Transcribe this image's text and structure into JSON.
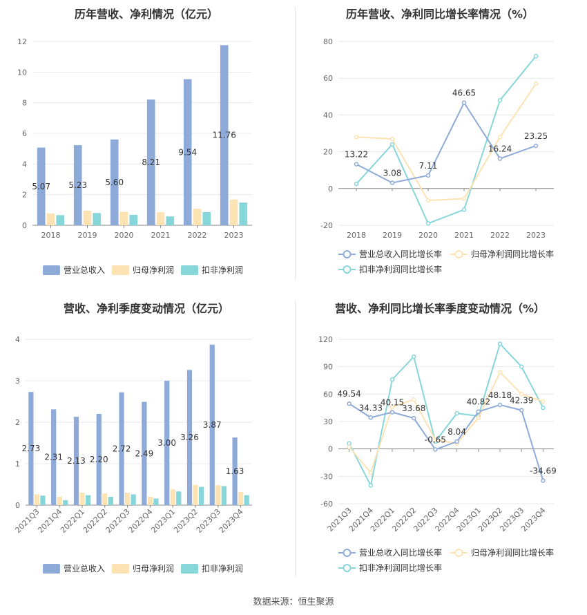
{
  "source_label": "数据来源：恒生聚源",
  "colors": {
    "revenue": "#8eaad9",
    "parent": "#fde3b4",
    "deducted": "#86d6da",
    "revenue_line": "#8eaad9",
    "parent_line": "#fde3b4",
    "deducted_line": "#86d6da",
    "grid": "#e8e8e8",
    "axis": "#666666"
  },
  "chart_data": [
    {
      "id": "annual-amount",
      "type": "bar",
      "title": "历年营收、净利情况（亿元）",
      "categories": [
        "2018",
        "2019",
        "2020",
        "2021",
        "2022",
        "2023"
      ],
      "ylim": [
        0,
        12
      ],
      "yticks": [
        0,
        2,
        4,
        6,
        8,
        10,
        12
      ],
      "series": [
        {
          "name": "营业总收入",
          "color_key": "revenue",
          "values": [
            5.07,
            5.23,
            5.6,
            8.21,
            9.54,
            11.76
          ],
          "labels": [
            "5.07",
            "5.23",
            "5.60",
            "8.21",
            "9.54",
            "11.76"
          ]
        },
        {
          "name": "归母净利润",
          "color_key": "parent",
          "values": [
            0.78,
            0.95,
            0.88,
            0.85,
            1.08,
            1.68
          ]
        },
        {
          "name": "扣非净利润",
          "color_key": "deducted",
          "values": [
            0.66,
            0.8,
            0.68,
            0.58,
            0.86,
            1.48
          ]
        }
      ],
      "grid": true,
      "legend_position": "bottom"
    },
    {
      "id": "annual-growth",
      "type": "line",
      "title": "历年营收、净利同比增长率情况（%）",
      "categories": [
        "2018",
        "2019",
        "2020",
        "2021",
        "2022",
        "2023"
      ],
      "ylim": [
        -20,
        80
      ],
      "yticks": [
        -20,
        0,
        20,
        40,
        60,
        80
      ],
      "series": [
        {
          "name": "营业总收入同比增长率",
          "color_key": "revenue_line",
          "values": [
            13.22,
            3.08,
            7.11,
            46.65,
            16.24,
            23.25
          ],
          "labels": [
            "13.22",
            "3.08",
            "7.11",
            "46.65",
            "16.24",
            "23.25"
          ]
        },
        {
          "name": "归母净利润同比增长率",
          "color_key": "parent_line",
          "values": [
            28.0,
            27.0,
            -6.5,
            -5.5,
            28.0,
            57.0
          ]
        },
        {
          "name": "扣非净利润同比增长率",
          "color_key": "deducted_line",
          "values": [
            2.5,
            24.0,
            -19.0,
            -11.5,
            48.0,
            72.0
          ]
        }
      ],
      "grid": true,
      "legend_position": "bottom"
    },
    {
      "id": "quarterly-amount",
      "type": "bar",
      "title": "营收、净利季度变动情况（亿元）",
      "categories": [
        "2021Q3",
        "2021Q4",
        "2022Q1",
        "2022Q2",
        "2022Q3",
        "2022Q4",
        "2023Q1",
        "2023Q2",
        "2023Q3",
        "2023Q4"
      ],
      "ylim": [
        0,
        4
      ],
      "yticks": [
        0,
        1,
        2,
        3,
        4
      ],
      "series": [
        {
          "name": "营业总收入",
          "color_key": "revenue",
          "values": [
            2.73,
            2.31,
            2.13,
            2.2,
            2.72,
            2.49,
            3.0,
            3.26,
            3.87,
            1.63
          ],
          "labels": [
            "2.73",
            "2.31",
            "2.13",
            "2.20",
            "2.72",
            "2.49",
            "3.00",
            "3.26",
            "3.87",
            "1.63"
          ]
        },
        {
          "name": "归母净利润",
          "color_key": "parent",
          "values": [
            0.26,
            0.2,
            0.3,
            0.28,
            0.3,
            0.2,
            0.38,
            0.49,
            0.48,
            0.32
          ]
        },
        {
          "name": "扣非净利润",
          "color_key": "deducted",
          "values": [
            0.23,
            0.12,
            0.24,
            0.2,
            0.26,
            0.16,
            0.33,
            0.44,
            0.46,
            0.24
          ]
        }
      ],
      "grid": true,
      "legend_position": "bottom"
    },
    {
      "id": "quarterly-growth",
      "type": "line",
      "title": "营收、净利同比增长率季度变动情况（%）",
      "categories": [
        "2021Q3",
        "2021Q4",
        "2022Q1",
        "2022Q2",
        "2022Q3",
        "2022Q4",
        "2023Q1",
        "2023Q2",
        "2023Q3",
        "2023Q4"
      ],
      "ylim": [
        -60,
        120
      ],
      "yticks": [
        -60,
        -30,
        0,
        30,
        60,
        90,
        120
      ],
      "series": [
        {
          "name": "营业总收入同比增长率",
          "color_key": "revenue_line",
          "values": [
            49.54,
            34.33,
            40.15,
            33.68,
            -0.65,
            8.04,
            40.82,
            48.18,
            42.39,
            -34.69
          ],
          "labels": [
            "49.54",
            "34.33",
            "40.15",
            "33.68",
            "-0.65",
            "8.04",
            "40.82",
            "48.18",
            "42.39",
            "-34.69"
          ]
        },
        {
          "name": "归母净利润同比增长率",
          "color_key": "parent_line",
          "values": [
            2,
            -26,
            46,
            54,
            10,
            6,
            34,
            84,
            60,
            52
          ]
        },
        {
          "name": "扣非净利润同比增长率",
          "color_key": "deducted_line",
          "values": [
            6,
            -40,
            76,
            101,
            8,
            39,
            36,
            115,
            90,
            45
          ]
        }
      ],
      "grid": true,
      "legend_position": "bottom"
    }
  ]
}
